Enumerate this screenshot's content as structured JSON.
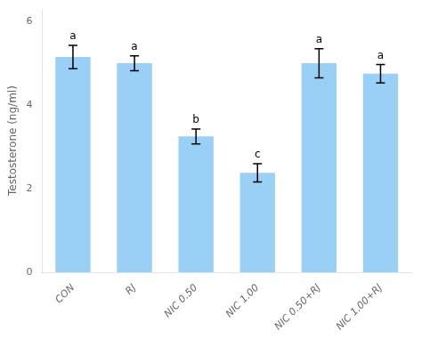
{
  "chart_data": {
    "type": "bar",
    "categories": [
      "CON",
      "RJ",
      "NIC 0.50",
      "NIC 1.00",
      "NIC 0.50+RJ",
      "NIC 1.00+RJ"
    ],
    "values": [
      5.15,
      5.0,
      3.25,
      2.38,
      5.0,
      4.75
    ],
    "errors": [
      0.28,
      0.18,
      0.18,
      0.22,
      0.35,
      0.22
    ],
    "annotations": [
      "a",
      "a",
      "b",
      "c",
      "a",
      "a"
    ],
    "ylabel": "Testosterone (ng/ml)",
    "ylim": [
      0,
      6.3
    ],
    "yticks": [
      0,
      2,
      4,
      6
    ],
    "grid": false
  }
}
